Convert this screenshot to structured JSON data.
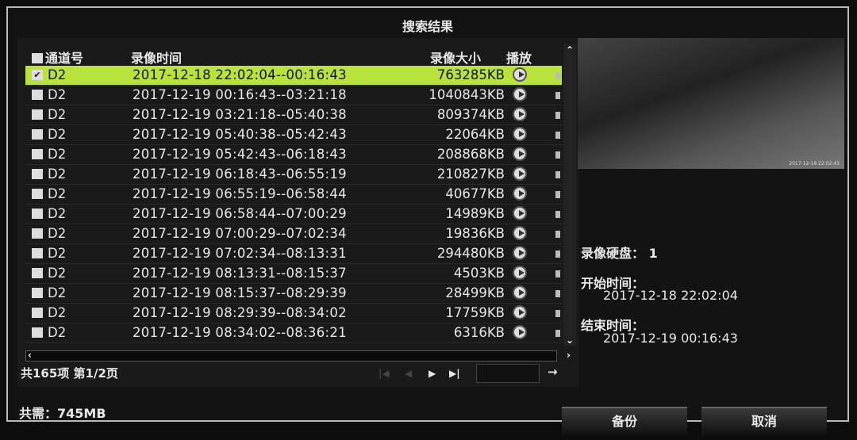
{
  "title": "搜索结果",
  "columns": {
    "channel": "通道号",
    "time": "录像时间",
    "size": "录像大小",
    "play": "播放"
  },
  "rows": [
    {
      "ch": "D2",
      "time": "2017-12-18 22:02:04--00:16:43",
      "size": "763285KB",
      "checked": true
    },
    {
      "ch": "D2",
      "time": "2017-12-19 00:16:43--03:21:18",
      "size": "1040843KB"
    },
    {
      "ch": "D2",
      "time": "2017-12-19 03:21:18--05:40:38",
      "size": "809374KB"
    },
    {
      "ch": "D2",
      "time": "2017-12-19 05:40:38--05:42:43",
      "size": "22064KB"
    },
    {
      "ch": "D2",
      "time": "2017-12-19 05:42:43--06:18:43",
      "size": "208868KB"
    },
    {
      "ch": "D2",
      "time": "2017-12-19 06:18:43--06:55:19",
      "size": "210827KB"
    },
    {
      "ch": "D2",
      "time": "2017-12-19 06:55:19--06:58:44",
      "size": "40677KB"
    },
    {
      "ch": "D2",
      "time": "2017-12-19 06:58:44--07:00:29",
      "size": "14989KB"
    },
    {
      "ch": "D2",
      "time": "2017-12-19 07:00:29--07:02:34",
      "size": "19836KB"
    },
    {
      "ch": "D2",
      "time": "2017-12-19 07:02:34--08:13:31",
      "size": "294480KB"
    },
    {
      "ch": "D2",
      "time": "2017-12-19 08:13:31--08:15:37",
      "size": "4503KB"
    },
    {
      "ch": "D2",
      "time": "2017-12-19 08:15:37--08:29:39",
      "size": "28499KB"
    },
    {
      "ch": "D2",
      "time": "2017-12-19 08:29:39--08:34:02",
      "size": "17759KB"
    },
    {
      "ch": "D2",
      "time": "2017-12-19 08:34:02--08:36:21",
      "size": "6316KB"
    }
  ],
  "pager": {
    "summary": "共165项 第1/2页",
    "page_input": ""
  },
  "preview": {
    "timestamp": "2017-12-18 22:02:43"
  },
  "info": {
    "disk_label": "录像硬盘：",
    "disk_value": "1",
    "start_label": "开始时间：",
    "start_value": "2017-12-18 22:02:04",
    "end_label": "结束时间：",
    "end_value": "2017-12-19 00:16:43"
  },
  "total": "共需：745MB",
  "buttons": {
    "backup": "备份",
    "cancel": "取消"
  },
  "colors": {
    "selected_row": "#b9e33c"
  }
}
